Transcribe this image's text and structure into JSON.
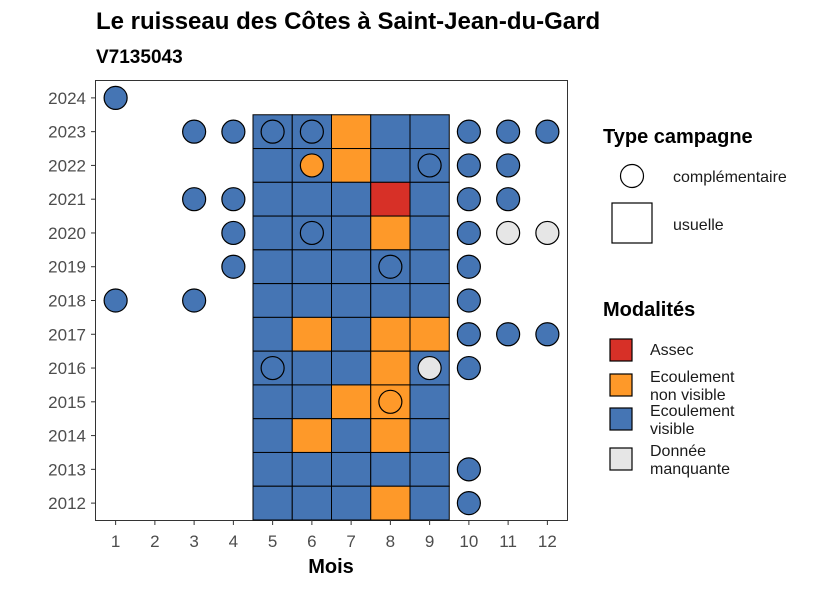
{
  "chart_data": {
    "type": "heatmap",
    "title": "Le ruisseau des Côtes à Saint-Jean-du-Gard",
    "subtitle": "V7135043",
    "xlabel": "Mois",
    "ylabel": "",
    "x_ticks": [
      1,
      2,
      3,
      4,
      5,
      6,
      7,
      8,
      9,
      10,
      11,
      12
    ],
    "y_ticks": [
      2012,
      2013,
      2014,
      2015,
      2016,
      2017,
      2018,
      2019,
      2020,
      2021,
      2022,
      2023,
      2024
    ],
    "xlim": [
      0.5,
      12.5
    ],
    "ylim": [
      2011.5,
      2024.5
    ],
    "grid": false,
    "legend_position": "right",
    "modalite_colors": {
      "Assec": "#d73027",
      "Ecoulement non visible": "#fe9929",
      "Ecoulement visible": "#4575b4",
      "Donnée manquante": "#e6e6e6"
    },
    "legend_type": {
      "title": "Type campagne",
      "items": [
        {
          "label": "complémentaire",
          "shape": "circle"
        },
        {
          "label": "usuelle",
          "shape": "square"
        }
      ]
    },
    "legend_modalites": {
      "title": "Modalités",
      "items": [
        {
          "label_lines": [
            "Assec"
          ],
          "key": "Assec"
        },
        {
          "label_lines": [
            "Ecoulement",
            "non visible"
          ],
          "key": "Ecoulement non visible"
        },
        {
          "label_lines": [
            "Ecoulement",
            "visible"
          ],
          "key": "Ecoulement visible"
        },
        {
          "label_lines": [
            "Donnée",
            "manquante"
          ],
          "key": "Donnée manquante"
        }
      ]
    },
    "usuelle": [
      {
        "year": 2023,
        "months": [
          "Ecoulement visible",
          "Ecoulement visible",
          "Ecoulement non visible",
          "Ecoulement visible",
          "Ecoulement visible"
        ]
      },
      {
        "year": 2022,
        "months": [
          "Ecoulement visible",
          "Ecoulement visible",
          "Ecoulement non visible",
          "Ecoulement visible",
          "Ecoulement visible"
        ]
      },
      {
        "year": 2021,
        "months": [
          "Ecoulement visible",
          "Ecoulement visible",
          "Ecoulement visible",
          "Assec",
          "Ecoulement visible"
        ]
      },
      {
        "year": 2020,
        "months": [
          "Ecoulement visible",
          "Ecoulement visible",
          "Ecoulement visible",
          "Ecoulement non visible",
          "Ecoulement visible"
        ]
      },
      {
        "year": 2019,
        "months": [
          "Ecoulement visible",
          "Ecoulement visible",
          "Ecoulement visible",
          "Ecoulement visible",
          "Ecoulement visible"
        ]
      },
      {
        "year": 2018,
        "months": [
          "Ecoulement visible",
          "Ecoulement visible",
          "Ecoulement visible",
          "Ecoulement visible",
          "Ecoulement visible"
        ]
      },
      {
        "year": 2017,
        "months": [
          "Ecoulement visible",
          "Ecoulement non visible",
          "Ecoulement visible",
          "Ecoulement non visible",
          "Ecoulement non visible"
        ]
      },
      {
        "year": 2016,
        "months": [
          "Ecoulement visible",
          "Ecoulement visible",
          "Ecoulement visible",
          "Ecoulement non visible",
          "Ecoulement visible"
        ]
      },
      {
        "year": 2015,
        "months": [
          "Ecoulement visible",
          "Ecoulement visible",
          "Ecoulement non visible",
          "Ecoulement non visible",
          "Ecoulement visible"
        ]
      },
      {
        "year": 2014,
        "months": [
          "Ecoulement visible",
          "Ecoulement non visible",
          "Ecoulement visible",
          "Ecoulement non visible",
          "Ecoulement visible"
        ]
      },
      {
        "year": 2013,
        "months": [
          "Ecoulement visible",
          "Ecoulement visible",
          "Ecoulement visible",
          "Ecoulement visible",
          "Ecoulement visible"
        ]
      },
      {
        "year": 2012,
        "months": [
          "Ecoulement visible",
          "Ecoulement visible",
          "Ecoulement visible",
          "Ecoulement non visible",
          "Ecoulement visible"
        ]
      }
    ],
    "usuelle_months": [
      5,
      6,
      7,
      8,
      9
    ],
    "complementaire": [
      {
        "month": 1,
        "year": 2024,
        "modalite": "Ecoulement visible"
      },
      {
        "month": 3,
        "year": 2023,
        "modalite": "Ecoulement visible"
      },
      {
        "month": 4,
        "year": 2023,
        "modalite": "Ecoulement visible"
      },
      {
        "month": 5,
        "year": 2023,
        "modalite": "Ecoulement visible"
      },
      {
        "month": 6,
        "year": 2023,
        "modalite": "Ecoulement visible"
      },
      {
        "month": 10,
        "year": 2023,
        "modalite": "Ecoulement visible"
      },
      {
        "month": 11,
        "year": 2023,
        "modalite": "Ecoulement visible"
      },
      {
        "month": 12,
        "year": 2023,
        "modalite": "Ecoulement visible"
      },
      {
        "month": 6,
        "year": 2022,
        "modalite": "Ecoulement non visible"
      },
      {
        "month": 9,
        "year": 2022,
        "modalite": "Ecoulement visible"
      },
      {
        "month": 10,
        "year": 2022,
        "modalite": "Ecoulement visible"
      },
      {
        "month": 11,
        "year": 2022,
        "modalite": "Ecoulement visible"
      },
      {
        "month": 3,
        "year": 2021,
        "modalite": "Ecoulement visible"
      },
      {
        "month": 4,
        "year": 2021,
        "modalite": "Ecoulement visible"
      },
      {
        "month": 10,
        "year": 2021,
        "modalite": "Ecoulement visible"
      },
      {
        "month": 11,
        "year": 2021,
        "modalite": "Ecoulement visible"
      },
      {
        "month": 4,
        "year": 2020,
        "modalite": "Ecoulement visible"
      },
      {
        "month": 6,
        "year": 2020,
        "modalite": "Ecoulement visible"
      },
      {
        "month": 10,
        "year": 2020,
        "modalite": "Ecoulement visible"
      },
      {
        "month": 11,
        "year": 2020,
        "modalite": "Donnée manquante"
      },
      {
        "month": 12,
        "year": 2020,
        "modalite": "Donnée manquante"
      },
      {
        "month": 4,
        "year": 2019,
        "modalite": "Ecoulement visible"
      },
      {
        "month": 8,
        "year": 2019,
        "modalite": "Ecoulement visible"
      },
      {
        "month": 10,
        "year": 2019,
        "modalite": "Ecoulement visible"
      },
      {
        "month": 1,
        "year": 2018,
        "modalite": "Ecoulement visible"
      },
      {
        "month": 3,
        "year": 2018,
        "modalite": "Ecoulement visible"
      },
      {
        "month": 10,
        "year": 2018,
        "modalite": "Ecoulement visible"
      },
      {
        "month": 10,
        "year": 2017,
        "modalite": "Ecoulement visible"
      },
      {
        "month": 11,
        "year": 2017,
        "modalite": "Ecoulement visible"
      },
      {
        "month": 12,
        "year": 2017,
        "modalite": "Ecoulement visible"
      },
      {
        "month": 5,
        "year": 2016,
        "modalite": "Ecoulement visible"
      },
      {
        "month": 9,
        "year": 2016,
        "modalite": "Donnée manquante"
      },
      {
        "month": 10,
        "year": 2016,
        "modalite": "Ecoulement visible"
      },
      {
        "month": 8,
        "year": 2015,
        "modalite": "Ecoulement non visible"
      },
      {
        "month": 10,
        "year": 2013,
        "modalite": "Ecoulement visible"
      },
      {
        "month": 10,
        "year": 2012,
        "modalite": "Ecoulement visible"
      }
    ]
  }
}
